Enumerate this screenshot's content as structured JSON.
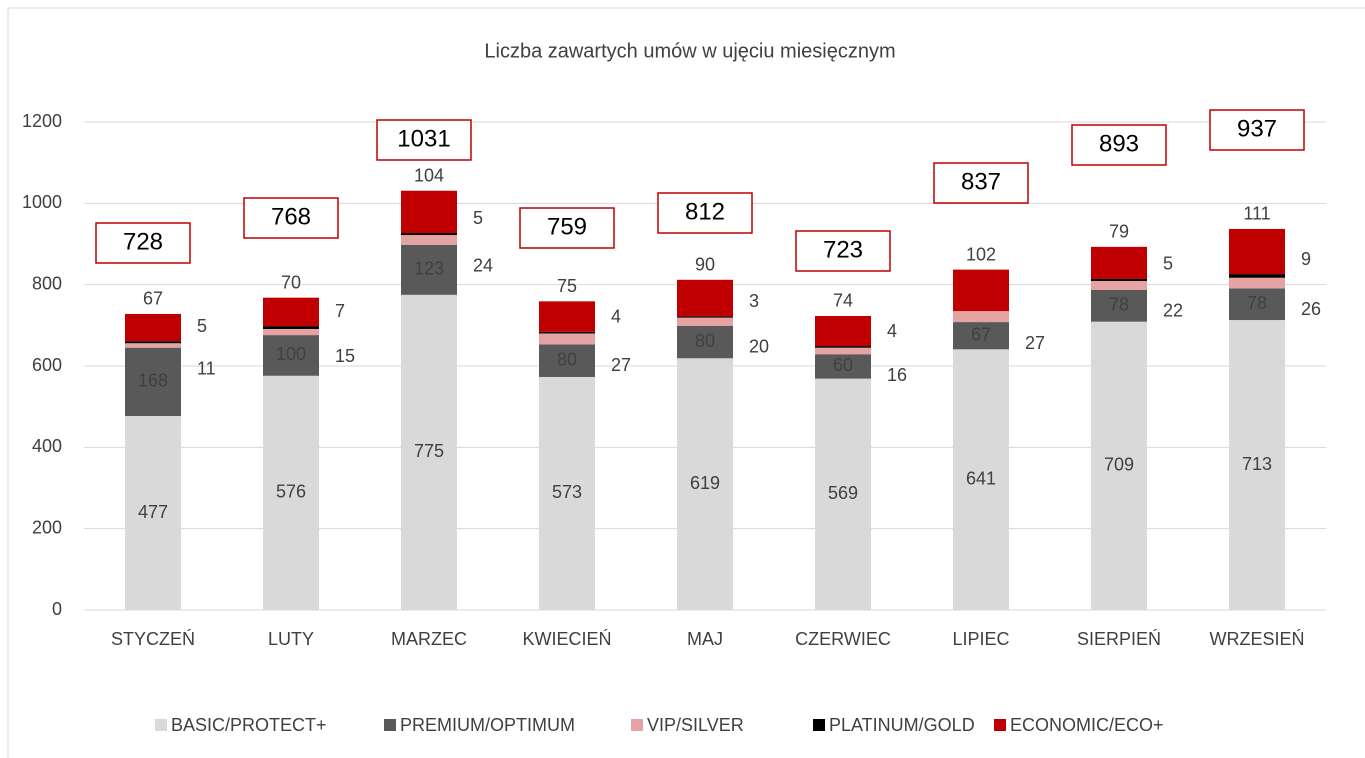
{
  "chart_data": {
    "type": "stacked_bar",
    "title": "Liczba zawartych umów w ujęciu miesięcznym",
    "categories": [
      "STYCZEŃ",
      "LUTY",
      "MARZEC",
      "KWIECIEŃ",
      "MAJ",
      "CZERWIEC",
      "LIPIEC",
      "SIERPIEŃ",
      "WRZESIEŃ"
    ],
    "series": [
      {
        "name": "BASIC/PROTECT+",
        "color": "#d9d9d9",
        "values": [
          477,
          576,
          775,
          573,
          619,
          569,
          641,
          709,
          713
        ]
      },
      {
        "name": "PREMIUM/OPTIMUM",
        "color": "#595959",
        "values": [
          168,
          100,
          123,
          80,
          80,
          60,
          67,
          78,
          78
        ]
      },
      {
        "name": "VIP/SILVER",
        "color": "#e6a3a3",
        "values": [
          11,
          15,
          24,
          27,
          20,
          16,
          27,
          22,
          26
        ]
      },
      {
        "name": "PLATINUM/GOLD",
        "color": "#000000",
        "values": [
          5,
          7,
          5,
          4,
          3,
          4,
          0,
          5,
          9
        ]
      },
      {
        "name": "ECONOMIC/ECO+",
        "color": "#c00000",
        "values": [
          67,
          70,
          104,
          75,
          90,
          74,
          102,
          79,
          111
        ]
      }
    ],
    "totals": [
      728,
      768,
      1031,
      759,
      812,
      723,
      837,
      893,
      937
    ],
    "ylim": [
      0,
      1200
    ],
    "yticks": [
      0,
      200,
      400,
      600,
      800,
      1000,
      1200
    ],
    "grid": true,
    "legend": "bottom"
  }
}
